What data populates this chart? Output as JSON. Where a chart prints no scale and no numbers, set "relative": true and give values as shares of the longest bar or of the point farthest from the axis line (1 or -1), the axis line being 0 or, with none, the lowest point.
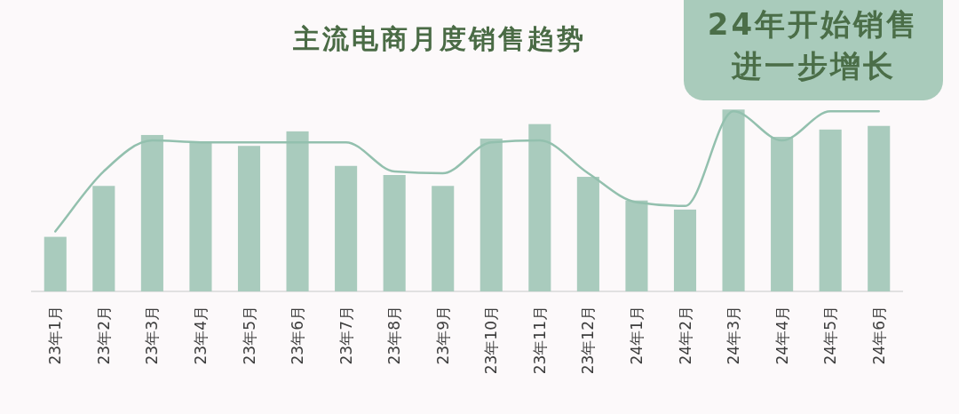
{
  "chart_data": {
    "type": "bar",
    "title": "主流电商月度销售趋势",
    "annotations": [
      "24年开始销售进一步增长"
    ],
    "categories": [
      "23年1月",
      "23年2月",
      "23年3月",
      "23年4月",
      "23年5月",
      "23年6月",
      "23年7月",
      "23年8月",
      "23年9月",
      "23年10月",
      "23年11月",
      "23年12月",
      "24年1月",
      "24年2月",
      "24年3月",
      "24年4月",
      "24年5月",
      "24年6月"
    ],
    "relative": true,
    "series": [
      {
        "color": "#a9cbbd",
        "values": [
          0.3,
          0.58,
          0.86,
          0.82,
          0.8,
          0.88,
          0.69,
          0.64,
          0.58,
          0.84,
          0.92,
          0.63,
          0.5,
          0.45,
          1,
          0.85,
          0.89,
          0.91
        ]
      },
      {
        "type": "line",
        "color": "#93c0ae",
        "values": [
          0.33,
          0.66,
          0.83,
          0.82,
          0.82,
          0.82,
          0.82,
          0.66,
          0.65,
          0.82,
          0.83,
          0.65,
          0.49,
          0.47,
          0.99,
          0.83,
          0.99,
          0.99
        ]
      }
    ]
  }
}
